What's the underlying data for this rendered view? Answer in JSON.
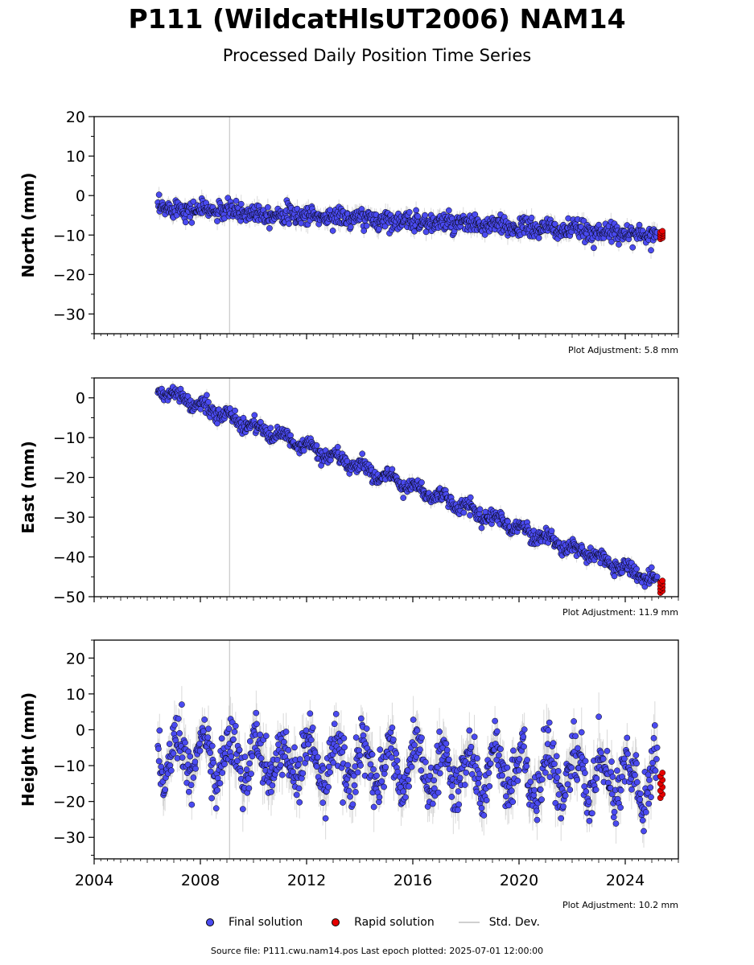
{
  "title": "P111 (WildcatHlsUT2006) NAM14",
  "subtitle": "Processed Daily Position Time Series",
  "colors": {
    "final": "#4a4af0",
    "rapid": "#e60000",
    "std": "#bbbbbb",
    "marker_edge": "#000000",
    "vline": "#c8c8c8"
  },
  "legend": {
    "final": "Final solution",
    "rapid": "Rapid solution",
    "std": "Std. Dev."
  },
  "source": "Source file: P111.cwu.nam14.pos  Last epoch plotted: 2025-07-01 12:00:00",
  "chart_data": [
    {
      "type": "scatter",
      "ylabel": "North (mm)",
      "xlim": [
        2004,
        2026
      ],
      "ylim": [
        -35,
        20
      ],
      "yticks": [
        20,
        10,
        0,
        -10,
        -20,
        -30
      ],
      "ytick_labels": [
        "20",
        "10",
        "0",
        "−10",
        "−20",
        "−30"
      ],
      "adjustment": "Plot Adjustment: 5.8 mm",
      "vline_x": 2009.1,
      "x_start": 2006.4,
      "x_end": 2025.2,
      "trend_start": -3.0,
      "trend_end": -10.0,
      "noise": 1.2,
      "seasonal": 0.4,
      "rapid_x": [
        2025.25,
        2025.5
      ],
      "rapid_y": [
        -11.0,
        -9.0
      ],
      "series": [
        {
          "name": "Final solution",
          "x": [
            2006.5,
            2008,
            2010,
            2012,
            2014,
            2016,
            2018,
            2020,
            2022,
            2024,
            2025.2
          ],
          "y": [
            -3.0,
            -3.5,
            -4.5,
            -5.5,
            -6.0,
            -6.5,
            -7.5,
            -8.0,
            -9.0,
            -9.5,
            -10.0
          ]
        },
        {
          "name": "Rapid solution",
          "x": [
            2025.3,
            2025.5
          ],
          "y": [
            -10.0,
            -10.5
          ]
        }
      ]
    },
    {
      "type": "scatter",
      "ylabel": "East (mm)",
      "xlim": [
        2004,
        2026
      ],
      "ylim": [
        -50,
        5
      ],
      "yticks": [
        0,
        -10,
        -20,
        -30,
        -40,
        -50
      ],
      "ytick_labels": [
        "0",
        "−10",
        "−20",
        "−30",
        "−40",
        "−50"
      ],
      "adjustment": "Plot Adjustment: 11.9 mm",
      "vline_x": 2009.1,
      "x_start": 2006.4,
      "x_end": 2025.2,
      "trend_start": 2.0,
      "trend_end": -46.0,
      "noise": 0.9,
      "seasonal": 1.0,
      "rapid_x": [
        2025.25,
        2025.5
      ],
      "rapid_y": [
        -49.0,
        -46.0
      ],
      "series": [
        {
          "name": "Final solution",
          "x": [
            2006.5,
            2008,
            2010,
            2012,
            2014,
            2016,
            2018,
            2020,
            2022,
            2024,
            2025.2
          ],
          "y": [
            2.0,
            -1.0,
            -7.0,
            -11.0,
            -16.0,
            -21.0,
            -26.0,
            -32.0,
            -37.0,
            -42.0,
            -46.0
          ]
        },
        {
          "name": "Rapid solution",
          "x": [
            2025.3,
            2025.5
          ],
          "y": [
            -47.0,
            -48.0
          ]
        }
      ]
    },
    {
      "type": "scatter",
      "ylabel": "Height (mm)",
      "xlim": [
        2004,
        2026
      ],
      "ylim": [
        -36,
        25
      ],
      "yticks": [
        20,
        10,
        0,
        -10,
        -20,
        -30
      ],
      "ytick_labels": [
        "20",
        "10",
        "0",
        "−10",
        "−20",
        "−30"
      ],
      "xticks": [
        2004,
        2008,
        2012,
        2016,
        2020,
        2024
      ],
      "xtick_labels": [
        "2004",
        "2008",
        "2012",
        "2016",
        "2020",
        "2024"
      ],
      "adjustment": "Plot Adjustment: 10.2 mm",
      "vline_x": 2009.1,
      "x_start": 2006.4,
      "x_end": 2025.2,
      "trend_start": -7.0,
      "trend_end": -14.0,
      "noise": 3.5,
      "seasonal": 6.0,
      "rapid_x": [
        2025.25,
        2025.5
      ],
      "rapid_y": [
        -19.0,
        -12.0
      ],
      "series": [
        {
          "name": "Final solution",
          "x": [
            2006.5,
            2008,
            2010,
            2012,
            2014,
            2016,
            2018,
            2020,
            2022,
            2024,
            2025.2
          ],
          "y": [
            -6.0,
            -8.0,
            -9.0,
            -10.0,
            -8.0,
            -9.0,
            -14.0,
            -15.0,
            -13.0,
            -15.0,
            -14.0
          ]
        },
        {
          "name": "Rapid solution",
          "x": [
            2025.3,
            2025.5
          ],
          "y": [
            -15.0,
            -16.0
          ]
        }
      ]
    }
  ]
}
